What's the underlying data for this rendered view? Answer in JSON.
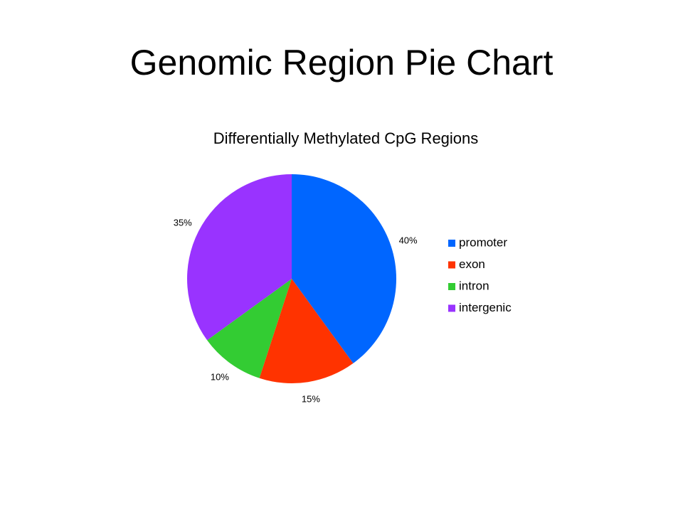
{
  "slide_title": "Genomic Region Pie Chart",
  "chart_data": {
    "type": "pie",
    "title": "Differentially Methylated CpG Regions",
    "categories": [
      "promoter",
      "exon",
      "intron",
      "intergenic"
    ],
    "values": [
      40,
      15,
      10,
      35
    ],
    "value_labels": [
      "40%",
      "15%",
      "10%",
      "35%"
    ],
    "colors": [
      "#0066ff",
      "#ff3300",
      "#33cc33",
      "#9933ff"
    ],
    "legend": "right"
  }
}
